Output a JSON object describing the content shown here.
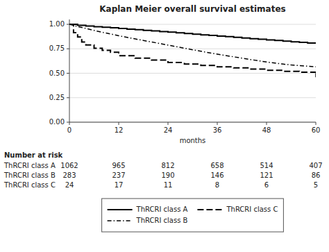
{
  "chart_data": {
    "type": "line",
    "title": "Kaplan Meier overall survival estimates",
    "x_label": "months",
    "xlim": [
      0,
      60
    ],
    "ylim": [
      0.0,
      1.05
    ],
    "xticks": [
      0,
      12,
      24,
      36,
      48,
      60
    ],
    "yticks": [
      {
        "value": 0.0,
        "label": "0.00"
      },
      0.25,
      {
        "value": 0.5,
        "label": "0.50"
      },
      0.75,
      {
        "value": 1.0,
        "label": "1.00"
      }
    ],
    "grid": true,
    "legend": "bottom",
    "series": [
      {
        "name": "ThRCRI class A",
        "type": "step",
        "color": "black",
        "line_style": "solid",
        "x": [
          0,
          2,
          4,
          6,
          8,
          10,
          12,
          14,
          16,
          18,
          20,
          22,
          24,
          26,
          28,
          30,
          32,
          34,
          36,
          38,
          40,
          42,
          44,
          46,
          48,
          50,
          52,
          54,
          56,
          58,
          60
        ],
        "values": [
          1.0,
          0.99,
          0.982,
          0.976,
          0.97,
          0.964,
          0.958,
          0.951,
          0.945,
          0.939,
          0.933,
          0.926,
          0.92,
          0.913,
          0.906,
          0.9,
          0.893,
          0.887,
          0.88,
          0.874,
          0.867,
          0.861,
          0.854,
          0.848,
          0.841,
          0.835,
          0.828,
          0.822,
          0.815,
          0.808,
          0.802
        ]
      },
      {
        "name": "ThRCRI class B",
        "type": "line",
        "color": "black",
        "line_style": "dashdot",
        "x": [
          0,
          2,
          4,
          6,
          8,
          10,
          12,
          14,
          16,
          18,
          20,
          22,
          24,
          26,
          28,
          30,
          32,
          34,
          36,
          38,
          40,
          42,
          44,
          46,
          48,
          50,
          52,
          54,
          56,
          58,
          60
        ],
        "values": [
          1.0,
          0.978,
          0.958,
          0.938,
          0.919,
          0.902,
          0.884,
          0.867,
          0.851,
          0.835,
          0.82,
          0.804,
          0.788,
          0.772,
          0.756,
          0.74,
          0.725,
          0.71,
          0.696,
          0.682,
          0.668,
          0.654,
          0.641,
          0.628,
          0.615,
          0.604,
          0.594,
          0.585,
          0.578,
          0.572,
          0.566
        ]
      },
      {
        "name": "ThRCRI class C",
        "type": "step",
        "color": "black",
        "line_style": "dashed",
        "x": [
          0,
          1,
          2,
          3,
          4,
          6,
          8,
          10,
          12,
          16,
          20,
          24,
          28,
          32,
          36,
          40,
          44,
          48,
          52,
          56,
          60
        ],
        "values": [
          1.0,
          0.915,
          0.87,
          0.82,
          0.79,
          0.755,
          0.735,
          0.715,
          0.68,
          0.655,
          0.635,
          0.61,
          0.595,
          0.58,
          0.565,
          0.555,
          0.542,
          0.53,
          0.52,
          0.51,
          0.502
        ],
        "censor": {
          "x": 60,
          "y_from": 0.46,
          "y_to": 0.502
        }
      }
    ],
    "risk_table": {
      "label": "Number at risk",
      "timepoints": [
        0,
        12,
        24,
        36,
        48,
        60
      ],
      "rows": [
        {
          "name": "ThRCRI class A",
          "values": [
            1062,
            965,
            812,
            658,
            514,
            407
          ]
        },
        {
          "name": "ThRCRI class B",
          "values": [
            283,
            237,
            190,
            146,
            121,
            86
          ]
        },
        {
          "name": "ThRCRI class C",
          "values": [
            24,
            17,
            11,
            8,
            6,
            5
          ]
        }
      ]
    }
  }
}
